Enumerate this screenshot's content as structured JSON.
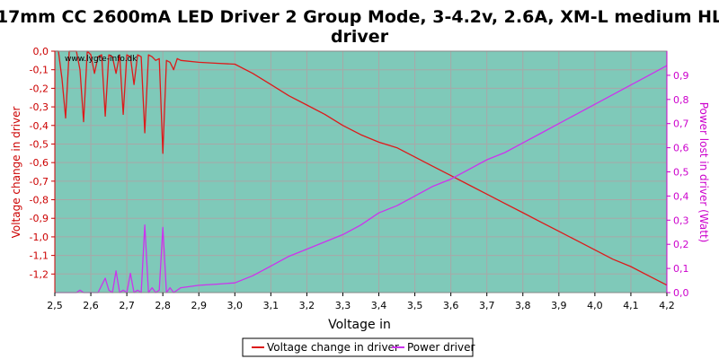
{
  "chart_data": {
    "type": "line",
    "title": "17mm CC 2600mA LED Driver 2 Group Mode, 3-4.2v, 2.6A, XM-L medium HL driver",
    "title_lines": [
      "17mm CC 2600mA LED Driver 2 Group Mode, 3-4.2v, 2.6A, XM-L medium HL",
      "driver"
    ],
    "watermark": "www.lygte-info.dk",
    "xlabel": "Voltage in",
    "ylabel_left": "Voltage change in driver",
    "ylabel_right": "Power lost in driver (Watt)",
    "xlim": [
      2.5,
      4.2
    ],
    "ylim_left": [
      -1.3,
      0.0
    ],
    "ylim_right": [
      0.0,
      1.0
    ],
    "grid": true,
    "legend_position": "bottom",
    "xticks": [
      "2,5",
      "2,6",
      "2,7",
      "2,8",
      "2,9",
      "3,0",
      "3,1",
      "3,2",
      "3,3",
      "3,4",
      "3,5",
      "3,6",
      "3,7",
      "3,8",
      "3,9",
      "4,0",
      "4,1",
      "4,2"
    ],
    "xtick_values": [
      2.5,
      2.6,
      2.7,
      2.8,
      2.9,
      3.0,
      3.1,
      3.2,
      3.3,
      3.4,
      3.5,
      3.6,
      3.7,
      3.8,
      3.9,
      4.0,
      4.1,
      4.2
    ],
    "yticks_left": [
      "0,0",
      "-0,1",
      "-0,2",
      "-0,3",
      "-0,4",
      "-0,5",
      "-0,6",
      "-0,7",
      "-0,8",
      "-0,9",
      "-1,0",
      "-1,1",
      "-1,2"
    ],
    "ytick_values_left": [
      0.0,
      -0.1,
      -0.2,
      -0.3,
      -0.4,
      -0.5,
      -0.6,
      -0.7,
      -0.8,
      -0.9,
      -1.0,
      -1.1,
      -1.2
    ],
    "yticks_right": [
      "0,0",
      "0,1",
      "0,2",
      "0,3",
      "0,4",
      "0,5",
      "0,6",
      "0,7",
      "0,8",
      "0,9"
    ],
    "ytick_values_right": [
      0.0,
      0.1,
      0.2,
      0.3,
      0.4,
      0.5,
      0.6,
      0.7,
      0.8,
      0.9
    ],
    "colors": {
      "plot_background": "#7fc9b9",
      "grid": "#a8a8a8",
      "voltage_series": "#dd1a1a",
      "power_series": "#cc33ee"
    },
    "series": [
      {
        "name": "Voltage change in driver",
        "axis": "left",
        "x": [
          2.5,
          2.51,
          2.52,
          2.53,
          2.54,
          2.55,
          2.56,
          2.57,
          2.58,
          2.59,
          2.6,
          2.61,
          2.62,
          2.63,
          2.64,
          2.65,
          2.66,
          2.67,
          2.68,
          2.69,
          2.7,
          2.71,
          2.72,
          2.73,
          2.74,
          2.75,
          2.76,
          2.77,
          2.78,
          2.79,
          2.8,
          2.81,
          2.82,
          2.83,
          2.84,
          2.85,
          2.9,
          2.95,
          3.0,
          3.05,
          3.1,
          3.15,
          3.2,
          3.25,
          3.3,
          3.35,
          3.4,
          3.45,
          3.5,
          3.55,
          3.6,
          3.65,
          3.7,
          3.75,
          3.8,
          3.85,
          3.9,
          3.95,
          4.0,
          4.05,
          4.1,
          4.15,
          4.2
        ],
        "y": [
          0.0,
          0.0,
          -0.15,
          -0.36,
          0.0,
          0.0,
          0.0,
          -0.1,
          -0.38,
          0.0,
          -0.02,
          -0.12,
          -0.03,
          -0.02,
          -0.35,
          -0.02,
          -0.03,
          -0.12,
          -0.02,
          -0.34,
          -0.02,
          -0.03,
          -0.18,
          -0.02,
          -0.03,
          -0.44,
          -0.02,
          -0.03,
          -0.05,
          -0.04,
          -0.55,
          -0.05,
          -0.06,
          -0.1,
          -0.04,
          -0.05,
          -0.06,
          -0.065,
          -0.07,
          -0.12,
          -0.18,
          -0.24,
          -0.29,
          -0.34,
          -0.4,
          -0.45,
          -0.49,
          -0.52,
          -0.57,
          -0.62,
          -0.67,
          -0.72,
          -0.77,
          -0.82,
          -0.87,
          -0.92,
          -0.97,
          -1.02,
          -1.07,
          -1.12,
          -1.16,
          -1.21,
          -1.26
        ]
      },
      {
        "name": "Power driver",
        "axis": "right",
        "x": [
          2.5,
          2.53,
          2.56,
          2.57,
          2.58,
          2.59,
          2.6,
          2.62,
          2.64,
          2.65,
          2.66,
          2.67,
          2.68,
          2.69,
          2.7,
          2.71,
          2.72,
          2.73,
          2.74,
          2.75,
          2.76,
          2.77,
          2.78,
          2.79,
          2.8,
          2.81,
          2.82,
          2.83,
          2.85,
          2.9,
          2.95,
          3.0,
          3.05,
          3.1,
          3.15,
          3.2,
          3.25,
          3.3,
          3.35,
          3.4,
          3.45,
          3.5,
          3.55,
          3.6,
          3.65,
          3.7,
          3.75,
          3.8,
          3.85,
          3.9,
          3.95,
          4.0,
          4.05,
          4.1,
          4.15,
          4.2
        ],
        "y": [
          0.0,
          0.0,
          0.0,
          0.01,
          0.0,
          0.0,
          0.0,
          0.0,
          0.06,
          0.01,
          0.0,
          0.09,
          0.0,
          0.01,
          0.0,
          0.08,
          0.0,
          0.01,
          0.0,
          0.28,
          0.0,
          0.02,
          0.0,
          0.01,
          0.27,
          0.0,
          0.02,
          0.0,
          0.02,
          0.03,
          0.035,
          0.04,
          0.07,
          0.11,
          0.15,
          0.18,
          0.21,
          0.24,
          0.28,
          0.33,
          0.36,
          0.4,
          0.44,
          0.47,
          0.51,
          0.55,
          0.58,
          0.62,
          0.66,
          0.7,
          0.74,
          0.78,
          0.82,
          0.86,
          0.9,
          0.94
        ]
      }
    ]
  }
}
